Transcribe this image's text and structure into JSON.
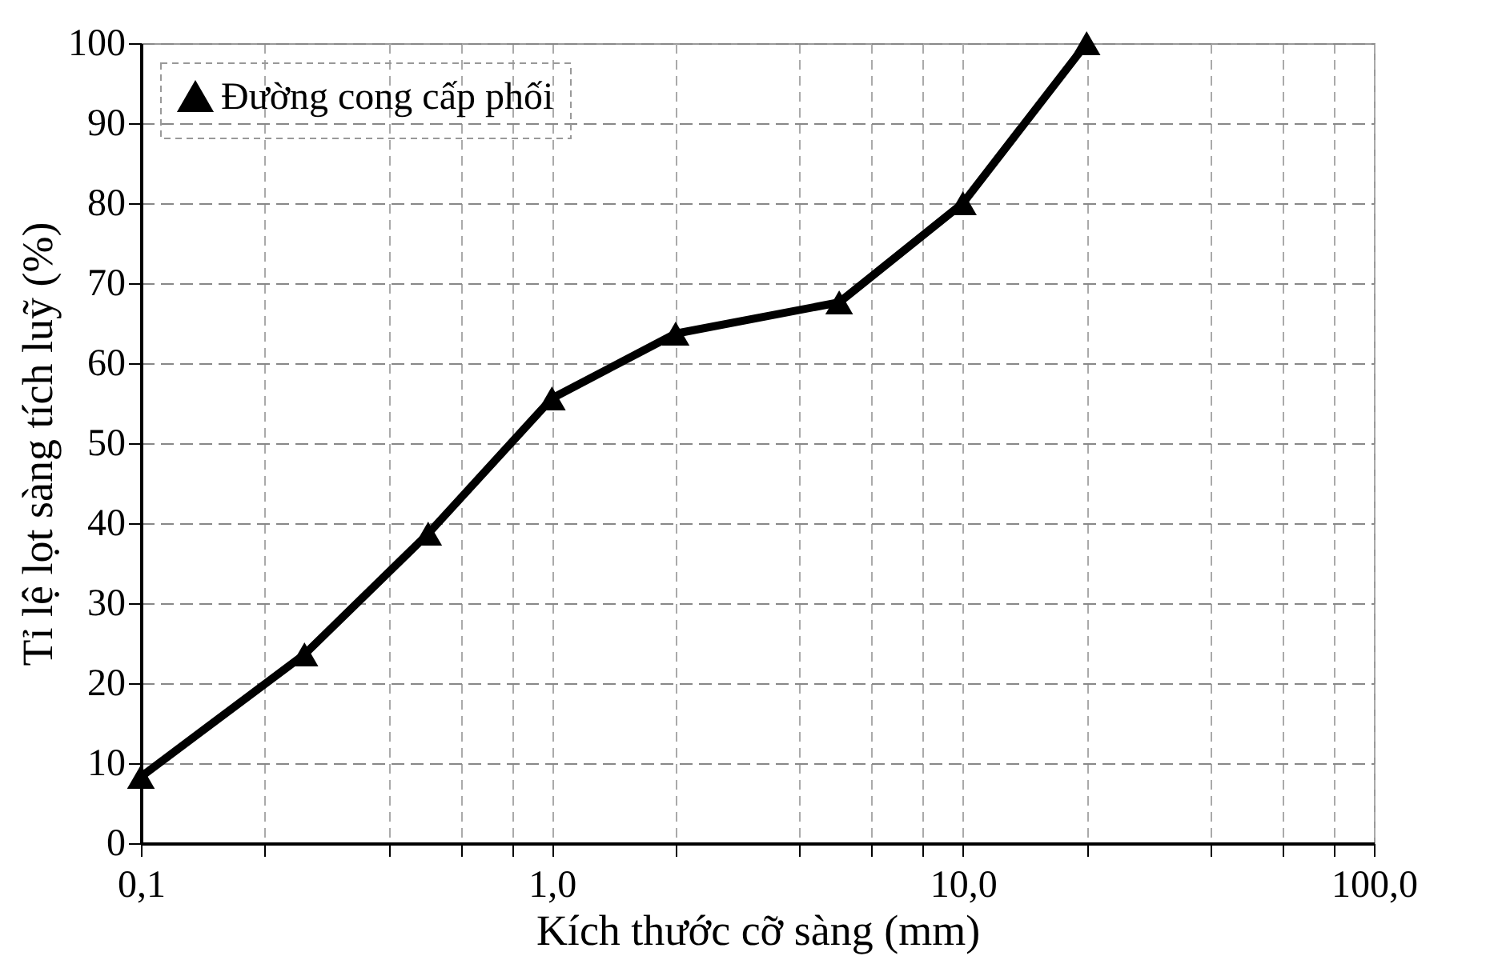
{
  "chart_data": {
    "type": "line",
    "xlabel": "Kích thước cỡ sàng (mm)",
    "ylabel": "Tỉ lệ lọt sàng tích luỹ (%)",
    "x": [
      0.1,
      0.25,
      0.5,
      1,
      2,
      5,
      10,
      20
    ],
    "series": [
      {
        "name": "Đường cong cấp phối",
        "color": "#000000",
        "values": [
          8.3,
          23.6,
          38.7,
          55.6,
          63.7,
          67.6,
          80,
          100
        ]
      }
    ],
    "log": "x",
    "xlim": [
      0.1,
      100
    ],
    "ylim": [
      0,
      100
    ],
    "xticks": [
      {
        "value": 0.1,
        "label": "0,1"
      },
      {
        "value": 0.2,
        "label": null
      },
      {
        "value": 0.4,
        "label": null
      },
      {
        "value": 0.6,
        "label": null
      },
      {
        "value": 0.8,
        "label": null
      },
      {
        "value": 1,
        "label": "1,0"
      },
      {
        "value": 2,
        "label": null
      },
      {
        "value": 4,
        "label": null
      },
      {
        "value": 6,
        "label": null
      },
      {
        "value": 8,
        "label": null
      },
      {
        "value": 10,
        "label": "10,0"
      },
      {
        "value": 20,
        "label": null
      },
      {
        "value": 40,
        "label": null
      },
      {
        "value": 60,
        "label": null
      },
      {
        "value": 80,
        "label": null
      },
      {
        "value": 100,
        "label": "100,0"
      }
    ],
    "yticks": [
      0,
      10,
      20,
      30,
      40,
      50,
      60,
      70,
      80,
      90,
      100
    ],
    "grid": true,
    "legend": "top left",
    "marker": "triangle",
    "line_style": "solid"
  }
}
